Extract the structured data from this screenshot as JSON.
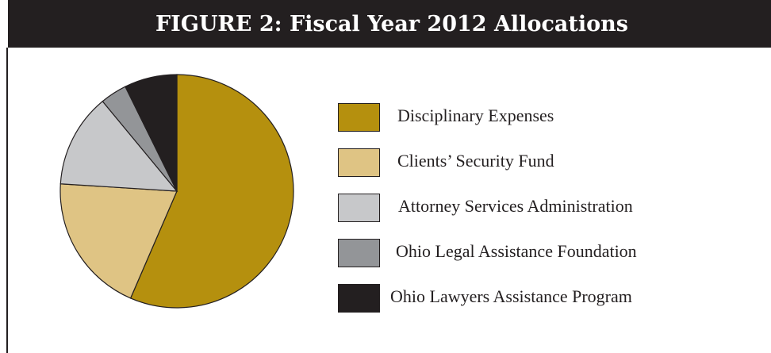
{
  "title": "FIGURE 2: Fiscal Year 2012 Allocations",
  "chart_data": {
    "type": "pie",
    "title": "FIGURE 2: Fiscal Year 2012 Allocations",
    "categories": [
      "Disciplinary Expenses",
      "Clients’ Security Fund",
      "Attorney Services Administration",
      "Ohio Legal Assistance Foundation",
      "Ohio Lawyers Assistance Program"
    ],
    "values": [
      56.5,
      19.5,
      13.0,
      3.7,
      7.3
    ],
    "unit": "%",
    "colors": [
      "#b5900e",
      "#dfc484",
      "#c7c8ca",
      "#939598",
      "#231f20"
    ],
    "legend_position": "right"
  }
}
